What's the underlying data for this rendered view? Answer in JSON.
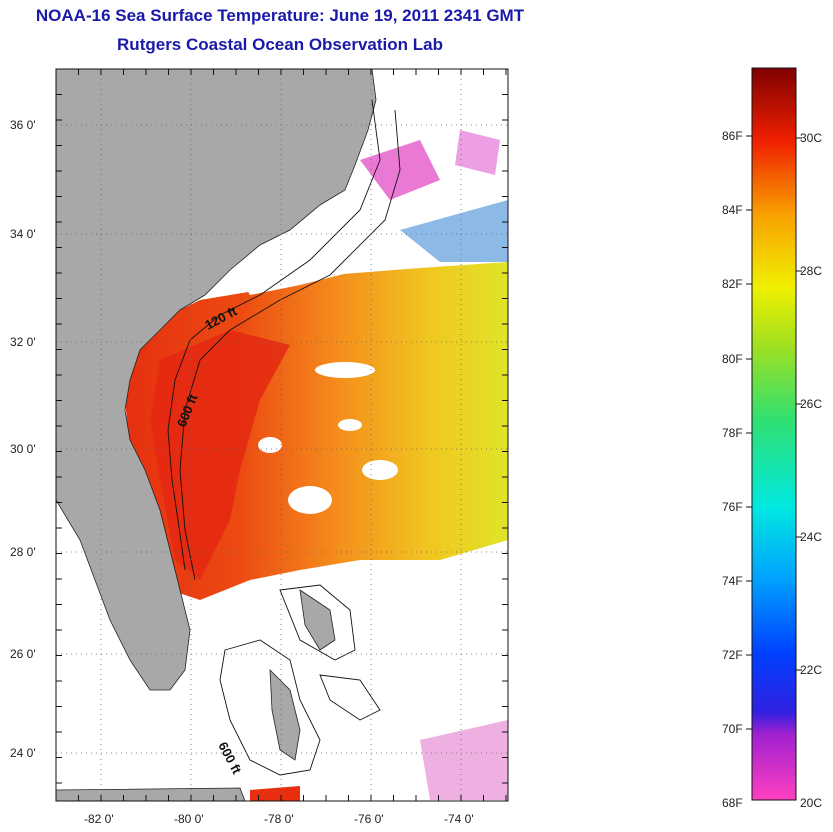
{
  "header": {
    "title": "NOAA-16 Sea Surface Temperature:  June 19, 2011 2341 GMT",
    "subtitle": "Rutgers Coastal Ocean Observation Lab"
  },
  "map": {
    "lat_labels": [
      "36 0'",
      "34 0'",
      "32 0'",
      "30 0'",
      "28 0'",
      "26 0'",
      "24 0'"
    ],
    "lon_labels": [
      "-82 0'",
      "-80 0'",
      "-78 0'",
      "-76 0'",
      "-74 0'"
    ],
    "lat_range": [
      23,
      37.2
    ],
    "lon_range": [
      -83,
      -73
    ],
    "contours": [
      {
        "label": "120 ft"
      },
      {
        "label": "600 ft"
      },
      {
        "label": "600 ft"
      }
    ],
    "colors": {
      "land": "#a8a8a8",
      "warm": "#e82010",
      "mid": "#f08020",
      "cool": "#e8e020",
      "cloud": "#ffffff"
    }
  },
  "colorbar": {
    "f_labels": [
      "86F",
      "84F",
      "82F",
      "80F",
      "78F",
      "76F",
      "74F",
      "72F",
      "70F",
      "68F"
    ],
    "c_labels": [
      "30C",
      "28C",
      "26C",
      "24C",
      "22C",
      "20C"
    ],
    "min_c": 20,
    "max_c": 31.3
  }
}
